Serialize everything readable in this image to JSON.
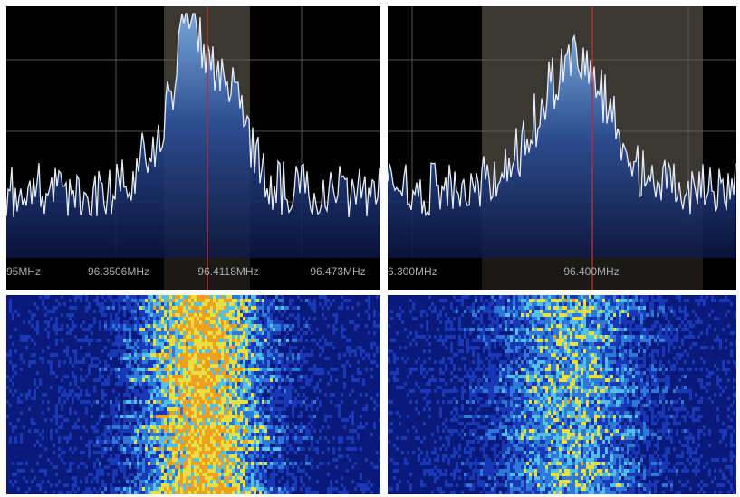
{
  "left": {
    "labels": [
      "95MHz",
      "96.3506MHz",
      "96.4118MHz",
      "96.473MHz"
    ]
  },
  "right": {
    "labels": [
      "6.300MHz",
      "96.400MHz"
    ]
  }
}
